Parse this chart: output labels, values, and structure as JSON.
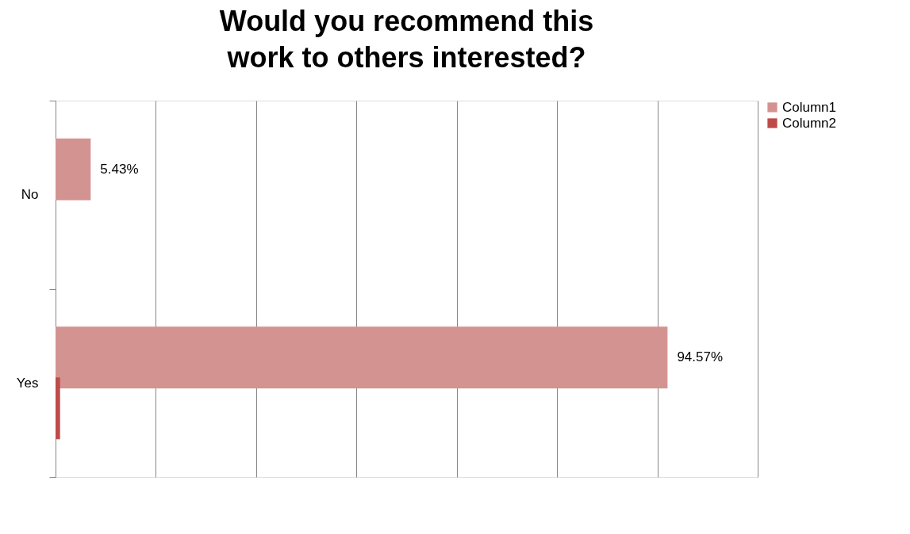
{
  "chart_data": {
    "type": "bar",
    "orientation": "horizontal",
    "title": "Would you recommend this work to others interested?",
    "categories": [
      "No",
      "Yes"
    ],
    "series": [
      {
        "name": "Column1",
        "color": "#d39391",
        "values": [
          5.43,
          94.57
        ],
        "value_labels": [
          "5.43%",
          "94.57%"
        ]
      },
      {
        "name": "Column2",
        "color": "#be4b48",
        "values": [
          0,
          0.7
        ]
      }
    ],
    "xlim": [
      0,
      108.5
    ],
    "xticks": [
      {
        "value": 0,
        "label": null
      },
      {
        "value": 15.5,
        "label": null
      },
      {
        "value": 31,
        "label": null
      },
      {
        "value": 46.5,
        "label": null
      },
      {
        "value": 62,
        "label": null
      },
      {
        "value": 77.5,
        "label": null
      },
      {
        "value": 93,
        "label": null
      },
      {
        "value": 108.5,
        "label": null
      }
    ],
    "tick_labels": "y",
    "grid": "x",
    "legend": "right"
  }
}
